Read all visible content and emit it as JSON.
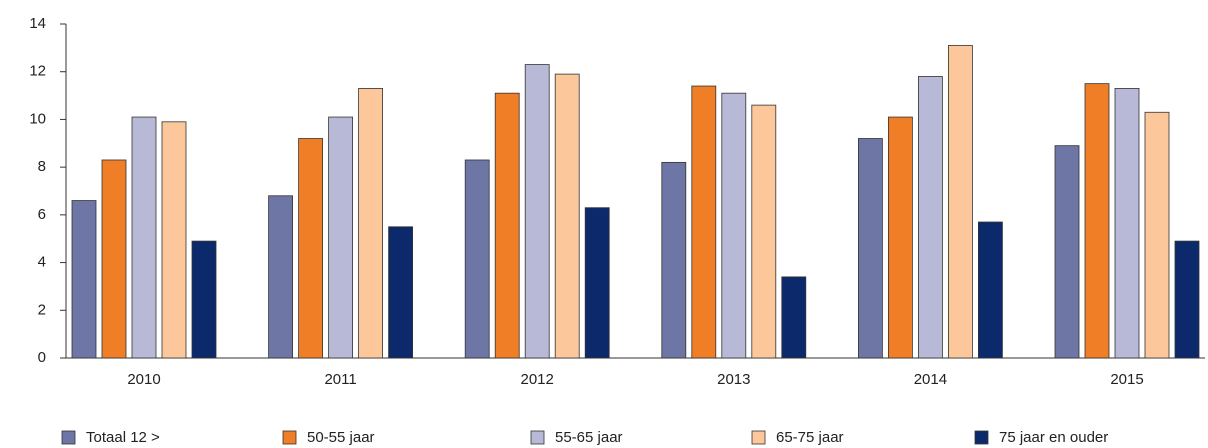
{
  "chart_data": {
    "type": "bar",
    "categories": [
      "2010",
      "2011",
      "2012",
      "2013",
      "2014",
      "2015"
    ],
    "series": [
      {
        "name": "Totaal 12 >",
        "color": "#6e76a6",
        "values": [
          6.6,
          6.8,
          8.3,
          8.2,
          9.2,
          8.9
        ]
      },
      {
        "name": "50-55 jaar",
        "color": "#f07e26",
        "values": [
          8.3,
          9.2,
          11.1,
          11.4,
          10.1,
          11.5
        ]
      },
      {
        "name": "55-65 jaar",
        "color": "#b7b9d6",
        "values": [
          10.1,
          10.1,
          12.3,
          11.1,
          11.8,
          11.3
        ]
      },
      {
        "name": "65-75 jaar",
        "color": "#fcc79a",
        "values": [
          9.9,
          11.3,
          11.9,
          10.6,
          13.1,
          10.3
        ]
      },
      {
        "name": "75 jaar en ouder",
        "color": "#0c2a6b",
        "values": [
          4.9,
          5.5,
          6.3,
          3.4,
          5.7,
          4.9
        ]
      }
    ],
    "ylim": [
      0,
      14
    ],
    "yticks": [
      0,
      2,
      4,
      6,
      8,
      10,
      12,
      14
    ],
    "grid": false,
    "legend": "bottom"
  }
}
